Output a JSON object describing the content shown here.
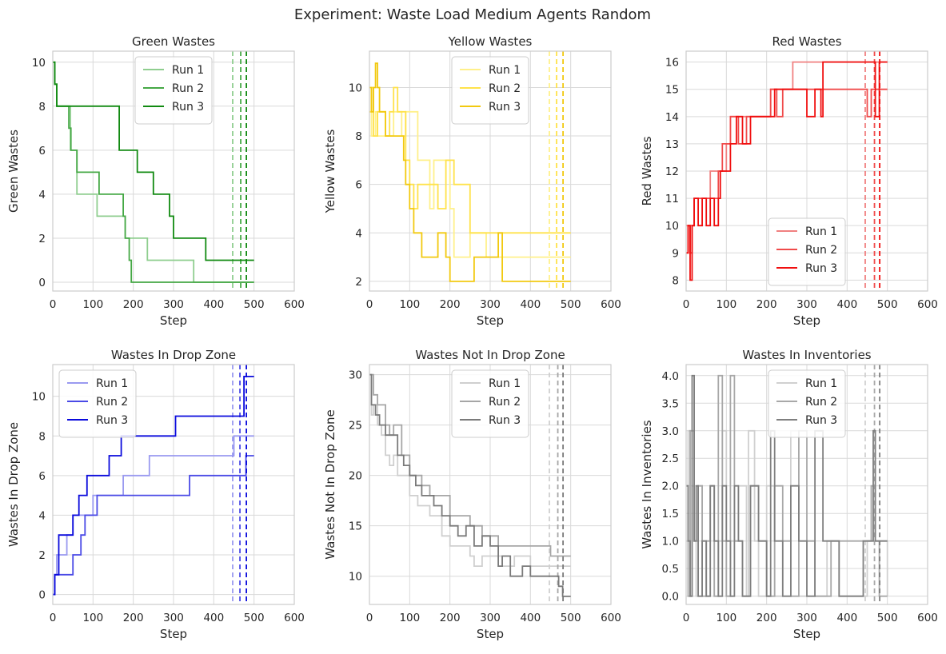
{
  "figure": {
    "title": "Experiment: Waste Load Medium Agents Random"
  },
  "chart_data": [
    {
      "type": "line",
      "title": "Green Wastes",
      "xlabel": "Step",
      "ylabel": "Green Wastes",
      "xlim": [
        0,
        600
      ],
      "ylim": [
        -0.4,
        10.5
      ],
      "xticks": [
        "0",
        "100",
        "200",
        "300",
        "400",
        "500",
        "600"
      ],
      "yticks": [
        "0",
        "2",
        "4",
        "6",
        "8",
        "10"
      ],
      "ytick_values": [
        0,
        2,
        4,
        6,
        8,
        10
      ],
      "legend_position": "upper center",
      "colors": [
        "#8fce8f",
        "#45a845",
        "#118a11"
      ],
      "end_markers": [
        447,
        467,
        481
      ],
      "series": [
        {
          "name": "Run 1",
          "x": [
            0,
            5,
            10,
            38,
            44,
            55,
            60,
            100,
            110,
            150,
            180,
            235,
            350,
            500
          ],
          "y": [
            10,
            9,
            8,
            8,
            6,
            6,
            4,
            4,
            3,
            3,
            2,
            1,
            0,
            0
          ]
        },
        {
          "name": "Run 2",
          "x": [
            0,
            5,
            10,
            35,
            40,
            45,
            55,
            60,
            110,
            115,
            165,
            175,
            180,
            185,
            190,
            195,
            500
          ],
          "y": [
            10,
            9,
            8,
            8,
            7,
            6,
            6,
            5,
            5,
            4,
            4,
            3,
            2,
            2,
            1,
            0,
            0
          ]
        },
        {
          "name": "Run 3",
          "x": [
            0,
            5,
            10,
            80,
            160,
            165,
            210,
            250,
            290,
            300,
            380,
            500
          ],
          "y": [
            10,
            9,
            8,
            8,
            8,
            6,
            5,
            4,
            3,
            2,
            1,
            1
          ]
        }
      ]
    },
    {
      "type": "line",
      "title": "Yellow Wastes",
      "xlabel": "Step",
      "ylabel": "Yellow Wastes",
      "xlim": [
        0,
        600
      ],
      "ylim": [
        1.6,
        11.5
      ],
      "xticks": [
        "0",
        "100",
        "200",
        "300",
        "400",
        "500",
        "600"
      ],
      "yticks": [
        "2",
        "4",
        "6",
        "8",
        "10"
      ],
      "ytick_values": [
        2,
        4,
        6,
        8,
        10
      ],
      "legend_position": "upper center",
      "colors": [
        "#fff08a",
        "#ffe24a",
        "#f2c90f"
      ],
      "end_markers": [
        447,
        465,
        481
      ],
      "series": [
        {
          "name": "Run 1",
          "x": [
            0,
            5,
            15,
            20,
            60,
            80,
            90,
            120,
            150,
            160,
            200,
            210,
            240,
            250,
            290,
            360,
            500
          ],
          "y": [
            9,
            8,
            9,
            8,
            9,
            8,
            9,
            7,
            5,
            7,
            5,
            3,
            3,
            4,
            3,
            3,
            3
          ]
        },
        {
          "name": "Run 2",
          "x": [
            0,
            5,
            10,
            20,
            40,
            50,
            60,
            70,
            90,
            100,
            110,
            120,
            170,
            190,
            210,
            250,
            280,
            300,
            320,
            500
          ],
          "y": [
            9,
            10,
            8,
            9,
            8,
            9,
            10,
            9,
            7,
            6,
            5,
            6,
            5,
            7,
            6,
            4,
            4,
            4,
            4,
            4
          ]
        },
        {
          "name": "Run 3",
          "x": [
            0,
            5,
            10,
            15,
            20,
            25,
            40,
            80,
            85,
            90,
            100,
            110,
            120,
            130,
            170,
            175,
            190,
            200,
            220,
            260,
            320,
            330,
            500
          ],
          "y": [
            10,
            9,
            10,
            11,
            10,
            9,
            8,
            8,
            7,
            6,
            5,
            4,
            4,
            3,
            4,
            4,
            3,
            2,
            2,
            3,
            4,
            2,
            2
          ]
        }
      ]
    },
    {
      "type": "line",
      "title": "Red Wastes",
      "xlabel": "Step",
      "ylabel": "Red Wastes",
      "xlim": [
        0,
        600
      ],
      "ylim": [
        7.6,
        16.4
      ],
      "xticks": [
        "0",
        "100",
        "200",
        "300",
        "400",
        "500",
        "600"
      ],
      "yticks": [
        "8",
        "9",
        "10",
        "11",
        "12",
        "13",
        "14",
        "15",
        "16"
      ],
      "ytick_values": [
        8,
        9,
        10,
        11,
        12,
        13,
        14,
        15,
        16
      ],
      "legend_position": "lower center",
      "colors": [
        "#f08080",
        "#f04a4a",
        "#f00f0f"
      ],
      "end_markers": [
        445,
        468,
        481
      ],
      "series": [
        {
          "name": "Run 1",
          "x": [
            0,
            10,
            20,
            50,
            60,
            80,
            100,
            110,
            200,
            210,
            260,
            265,
            300,
            500
          ],
          "y": [
            10,
            10,
            11,
            11,
            12,
            12,
            13,
            14,
            14,
            15,
            15,
            16,
            16,
            16
          ]
        },
        {
          "name": "Run 2",
          "x": [
            0,
            5,
            10,
            15,
            20,
            40,
            60,
            80,
            85,
            90,
            110,
            130,
            150,
            180,
            210,
            225,
            240,
            260,
            300,
            400,
            450,
            460,
            500
          ],
          "y": [
            9,
            10,
            9,
            10,
            11,
            11,
            11,
            12,
            12,
            13,
            14,
            13,
            14,
            14,
            15,
            14,
            15,
            15,
            15,
            15,
            14,
            15,
            15
          ]
        },
        {
          "name": "Run 3",
          "x": [
            0,
            5,
            10,
            15,
            20,
            30,
            40,
            50,
            60,
            70,
            80,
            85,
            100,
            110,
            125,
            140,
            160,
            180,
            200,
            220,
            250,
            290,
            300,
            320,
            335,
            340,
            460,
            470,
            480,
            500
          ],
          "y": [
            9,
            10,
            8,
            10,
            11,
            10,
            11,
            10,
            11,
            10,
            11,
            12,
            12,
            13,
            14,
            13,
            14,
            14,
            14,
            15,
            15,
            15,
            14,
            15,
            14,
            16,
            16,
            14,
            16,
            16
          ]
        }
      ]
    },
    {
      "type": "line",
      "title": "Wastes In Drop Zone",
      "xlabel": "Step",
      "ylabel": "Wastes In Drop Zone",
      "xlim": [
        0,
        600
      ],
      "ylim": [
        -0.5,
        11.6
      ],
      "xticks": [
        "0",
        "100",
        "200",
        "300",
        "400",
        "500",
        "600"
      ],
      "yticks": [
        "0",
        "2",
        "4",
        "6",
        "8",
        "10"
      ],
      "ytick_values": [
        0,
        2,
        4,
        6,
        8,
        10
      ],
      "legend_position": "upper left",
      "colors": [
        "#9a9af0",
        "#4a4ae6",
        "#0a0adc"
      ],
      "end_markers": [
        447,
        465,
        481
      ],
      "series": [
        {
          "name": "Run 1",
          "x": [
            0,
            5,
            10,
            20,
            35,
            50,
            90,
            100,
            110,
            170,
            175,
            240,
            290,
            440,
            450,
            500
          ],
          "y": [
            0,
            1,
            2,
            2,
            3,
            4,
            4,
            5,
            5,
            5,
            6,
            7,
            7,
            7,
            8,
            8
          ]
        },
        {
          "name": "Run 2",
          "x": [
            0,
            5,
            20,
            40,
            50,
            70,
            80,
            110,
            230,
            335,
            340,
            470,
            480,
            500
          ],
          "y": [
            0,
            1,
            1,
            1,
            2,
            3,
            4,
            5,
            5,
            5,
            6,
            6,
            7,
            7
          ]
        },
        {
          "name": "Run 3",
          "x": [
            0,
            5,
            15,
            50,
            65,
            80,
            85,
            140,
            170,
            200,
            305,
            440,
            475,
            500
          ],
          "y": [
            0,
            1,
            3,
            4,
            5,
            5,
            6,
            7,
            8,
            8,
            9,
            9,
            11,
            11
          ]
        }
      ]
    },
    {
      "type": "line",
      "title": "Wastes Not In Drop Zone",
      "xlabel": "Step",
      "ylabel": "Wastes Not In Drop Zone",
      "xlim": [
        0,
        600
      ],
      "ylim": [
        7.2,
        31
      ],
      "xticks": [
        "0",
        "100",
        "200",
        "300",
        "400",
        "500",
        "600"
      ],
      "yticks": [
        "10",
        "15",
        "20",
        "25",
        "30"
      ],
      "ytick_values": [
        10,
        15,
        20,
        25,
        30
      ],
      "legend_position": "upper center",
      "colors": [
        "#cfcfcf",
        "#a6a6a6",
        "#7a7a7a"
      ],
      "end_markers": [
        447,
        468,
        481
      ],
      "series": [
        {
          "name": "Run 1",
          "x": [
            0,
            5,
            10,
            20,
            30,
            40,
            50,
            60,
            70,
            90,
            100,
            120,
            150,
            180,
            200,
            230,
            250,
            260,
            280,
            300,
            330,
            360,
            400,
            440,
            470,
            500
          ],
          "y": [
            30,
            26,
            27,
            25,
            24,
            22,
            21,
            22,
            20,
            20,
            18,
            17,
            16,
            14,
            13,
            13,
            12,
            11,
            12,
            12,
            11,
            12,
            11,
            11,
            11,
            11
          ]
        },
        {
          "name": "Run 2",
          "x": [
            0,
            10,
            20,
            40,
            50,
            60,
            80,
            100,
            130,
            150,
            200,
            250,
            280,
            300,
            320,
            340,
            440,
            450,
            500
          ],
          "y": [
            30,
            28,
            27,
            25,
            24,
            25,
            22,
            20,
            19,
            18,
            16,
            15,
            14,
            14,
            13,
            13,
            13,
            12,
            12
          ]
        },
        {
          "name": "Run 3",
          "x": [
            0,
            5,
            15,
            25,
            40,
            55,
            70,
            85,
            100,
            115,
            130,
            160,
            180,
            200,
            220,
            240,
            260,
            280,
            300,
            320,
            330,
            350,
            380,
            400,
            420,
            450,
            470,
            480,
            500
          ],
          "y": [
            30,
            27,
            26,
            25,
            24,
            24,
            22,
            21,
            20,
            19,
            18,
            17,
            16,
            15,
            14,
            15,
            13,
            14,
            13,
            11,
            12,
            10,
            11,
            10,
            10,
            10,
            9,
            8,
            8
          ]
        }
      ]
    },
    {
      "type": "line",
      "title": "Wastes In Inventories",
      "xlabel": "Step",
      "ylabel": "Wastes In Inventories",
      "xlim": [
        0,
        600
      ],
      "ylim": [
        -0.15,
        4.2
      ],
      "xticks": [
        "0",
        "100",
        "200",
        "300",
        "400",
        "500",
        "600"
      ],
      "yticks": [
        "0.0",
        "0.5",
        "1.0",
        "1.5",
        "2.0",
        "2.5",
        "3.0",
        "3.5",
        "4.0"
      ],
      "ytick_values": [
        0,
        0.5,
        1,
        1.5,
        2,
        2.5,
        3,
        3.5,
        4
      ],
      "legend_position": "upper center",
      "colors": [
        "#d0d0d0",
        "#a8a8a8",
        "#7f7f7f"
      ],
      "end_markers": [
        445,
        468,
        481
      ],
      "series": [
        {
          "name": "Run 1",
          "x": [
            0,
            5,
            10,
            15,
            20,
            25,
            30,
            40,
            50,
            60,
            70,
            80,
            90,
            100,
            110,
            130,
            150,
            155,
            170,
            180,
            200,
            220,
            240,
            260,
            280,
            300,
            320,
            350,
            380,
            400,
            440,
            450,
            500
          ],
          "y": [
            1,
            3,
            0,
            2,
            1,
            0,
            2,
            1,
            0,
            2,
            0,
            1,
            3,
            0,
            1,
            2,
            0,
            3,
            1,
            0,
            2,
            0,
            1,
            3,
            0,
            1,
            0,
            1,
            0,
            0,
            0,
            1,
            0
          ]
        },
        {
          "name": "Run 2",
          "x": [
            0,
            5,
            10,
            20,
            30,
            40,
            50,
            60,
            70,
            80,
            90,
            100,
            110,
            120,
            140,
            160,
            180,
            200,
            220,
            240,
            260,
            280,
            300,
            320,
            360,
            400,
            440,
            460,
            470,
            480,
            500
          ],
          "y": [
            2,
            0,
            3,
            1,
            2,
            0,
            1,
            2,
            0,
            4,
            1,
            0,
            4,
            1,
            0,
            2,
            1,
            0,
            2,
            1,
            0,
            3,
            1,
            0,
            1,
            1,
            1,
            2,
            1,
            0,
            0
          ]
        },
        {
          "name": "Run 3",
          "x": [
            0,
            5,
            10,
            15,
            20,
            25,
            30,
            40,
            50,
            60,
            70,
            80,
            90,
            100,
            110,
            120,
            130,
            140,
            160,
            180,
            200,
            210,
            220,
            240,
            260,
            280,
            300,
            320,
            340,
            380,
            440,
            465,
            470,
            475,
            500
          ],
          "y": [
            2,
            1,
            0,
            4,
            1,
            2,
            0,
            1,
            0,
            2,
            1,
            0,
            2,
            1,
            0,
            2,
            1,
            0,
            2,
            1,
            0,
            3,
            1,
            0,
            2,
            1,
            0,
            3,
            1,
            0,
            1,
            3,
            1,
            1,
            1
          ]
        }
      ]
    }
  ]
}
